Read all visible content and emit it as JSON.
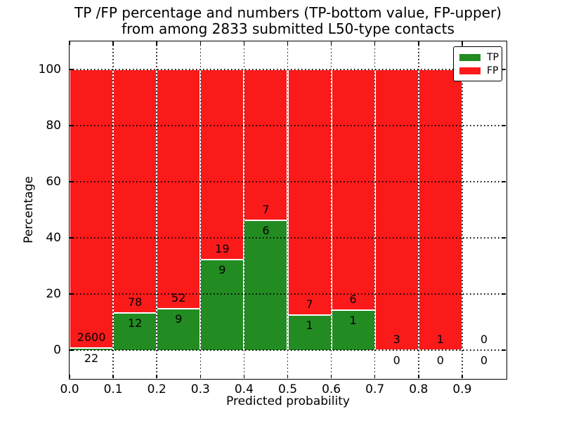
{
  "title": {
    "line1": "TP /FP percentage and numbers (TP-bottom value, FP-upper)",
    "line2": "from among 2833 submitted L50-type contacts"
  },
  "axes": {
    "xlabel": "Predicted probability",
    "ylabel": "Percentage",
    "x_ticks": [
      "0.0",
      "0.1",
      "0.2",
      "0.3",
      "0.4",
      "0.5",
      "0.6",
      "0.7",
      "0.8",
      "0.9"
    ],
    "y_ticks": [
      "0",
      "20",
      "40",
      "60",
      "80",
      "100"
    ],
    "xlim": [
      0.0,
      1.0
    ],
    "ylim": [
      -10,
      110
    ]
  },
  "legend": [
    {
      "label": "TP",
      "color": "#228b22"
    },
    {
      "label": "FP",
      "color": "#fb1a1a"
    }
  ],
  "colors": {
    "tp_green": "#228b22",
    "fp_red": "#fb1a1a",
    "grid": "#000000",
    "bar_edge": "#ffffff",
    "background": "#ffffff"
  },
  "chart_data": {
    "type": "bar",
    "stacked": true,
    "normalized": "each bin scaled to 100%",
    "title": "TP /FP percentage and numbers (TP-bottom value, FP-upper) from among 2833 submitted L50-type contacts",
    "xlabel": "Predicted probability",
    "ylabel": "Percentage",
    "xlim": [
      0.0,
      1.0
    ],
    "ylim": [
      -10,
      110
    ],
    "grid": "dotted, drawn over bars",
    "legend_position": "upper right",
    "total_contacts": 2833,
    "categories": [
      "0.0-0.1",
      "0.1-0.2",
      "0.2-0.3",
      "0.3-0.4",
      "0.4-0.5",
      "0.5-0.6",
      "0.6-0.7",
      "0.7-0.8",
      "0.8-0.9",
      "0.9-1.0"
    ],
    "series": [
      {
        "name": "TP",
        "color": "#228b22",
        "counts": [
          22,
          12,
          9,
          9,
          6,
          1,
          1,
          0,
          0,
          0
        ],
        "pct": [
          0.84,
          13.33,
          14.75,
          32.14,
          46.15,
          12.5,
          14.29,
          0,
          0,
          null
        ]
      },
      {
        "name": "FP",
        "color": "#fb1a1a",
        "counts": [
          2600,
          78,
          52,
          19,
          7,
          7,
          6,
          3,
          1,
          0
        ],
        "pct": [
          99.16,
          86.67,
          85.25,
          67.86,
          53.85,
          87.5,
          85.71,
          100,
          100,
          null
        ]
      }
    ],
    "bins": [
      {
        "x0": 0.0,
        "x1": 0.1,
        "tp": 22,
        "fp": 2600,
        "tp_pct": 0.84,
        "has_data": true,
        "tp_label": "22",
        "fp_label": "2600"
      },
      {
        "x0": 0.1,
        "x1": 0.2,
        "tp": 12,
        "fp": 78,
        "tp_pct": 13.33,
        "has_data": true,
        "tp_label": "12",
        "fp_label": "78"
      },
      {
        "x0": 0.2,
        "x1": 0.3,
        "tp": 9,
        "fp": 52,
        "tp_pct": 14.75,
        "has_data": true,
        "tp_label": "9",
        "fp_label": "52"
      },
      {
        "x0": 0.3,
        "x1": 0.4,
        "tp": 9,
        "fp": 19,
        "tp_pct": 32.14,
        "has_data": true,
        "tp_label": "9",
        "fp_label": "19"
      },
      {
        "x0": 0.4,
        "x1": 0.5,
        "tp": 6,
        "fp": 7,
        "tp_pct": 46.15,
        "has_data": true,
        "tp_label": "6",
        "fp_label": "7"
      },
      {
        "x0": 0.5,
        "x1": 0.6,
        "tp": 1,
        "fp": 7,
        "tp_pct": 12.5,
        "has_data": true,
        "tp_label": "1",
        "fp_label": "7"
      },
      {
        "x0": 0.6,
        "x1": 0.7,
        "tp": 1,
        "fp": 6,
        "tp_pct": 14.29,
        "has_data": true,
        "tp_label": "1",
        "fp_label": "6"
      },
      {
        "x0": 0.7,
        "x1": 0.8,
        "tp": 0,
        "fp": 3,
        "tp_pct": 0,
        "has_data": true,
        "tp_label": "0",
        "fp_label": "3"
      },
      {
        "x0": 0.8,
        "x1": 0.9,
        "tp": 0,
        "fp": 1,
        "tp_pct": 0,
        "has_data": true,
        "tp_label": "0",
        "fp_label": "1"
      },
      {
        "x0": 0.9,
        "x1": 1.0,
        "tp": 0,
        "fp": 0,
        "tp_pct": 0,
        "has_data": false,
        "tp_label": "0",
        "fp_label": "0"
      }
    ]
  }
}
